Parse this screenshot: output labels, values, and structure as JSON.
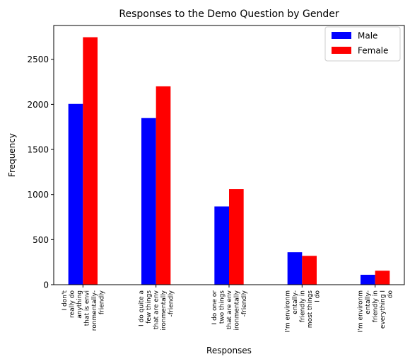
{
  "chart_data": {
    "type": "bar",
    "title": "Responses to the Demo Question by Gender",
    "xlabel": "Responses",
    "ylabel": "Frequency",
    "ylim": [
      0,
      2875
    ],
    "yticks": [
      0,
      500,
      1000,
      1500,
      2000,
      2500
    ],
    "categories": [
      "I don't really do anything that is environmentally-friendly",
      "I do quite a few things that are environmentally-friendly",
      "I do one or two things that are environmentally-friendly",
      "I'm environmentally-friendly in most things I do",
      "I'm environmentally-friendly in everything I do"
    ],
    "category_label_lines": [
      [
        "I don't",
        "really do",
        "anything",
        "that is envi",
        "ronmentally-",
        "friendly"
      ],
      [
        "I do quite a",
        "few things",
        "that are env",
        "ironmentally",
        "-friendly"
      ],
      [
        "I do one or",
        "two things",
        "that are env",
        "ironmentally",
        "-friendly"
      ],
      [
        "I'm environm",
        "entally-",
        "friendly in",
        "most things",
        "I do"
      ],
      [
        "I'm environm",
        "entally-",
        "friendly in",
        "everything I",
        "do"
      ]
    ],
    "series": [
      {
        "name": "Male",
        "color": "#0000ff",
        "values": [
          2005,
          1848,
          868,
          360,
          110
        ]
      },
      {
        "name": "Female",
        "color": "#ff0000",
        "values": [
          2745,
          2200,
          1060,
          320,
          155
        ]
      }
    ],
    "legend_position": "top-right",
    "grid": false
  }
}
